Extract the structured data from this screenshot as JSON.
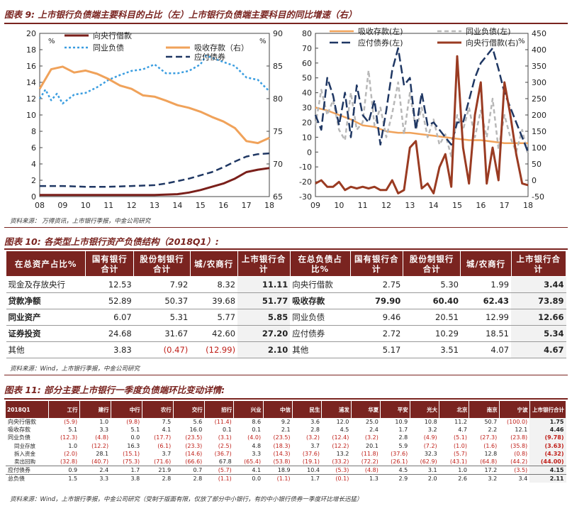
{
  "fig9_title": "图表 9: 上市银行负债端主要科目的占比（左）上市银行负债端主要科目的同比增速（右）",
  "fig9_source": "资料来源：  万得资讯，上市银行季报，中金公司研究",
  "fig10_title": "图表 10: 各类型上市银行资产负债结构（2018Q1）:",
  "fig10_source": "资料来源：Wind，上市银行季报，中金公司研究",
  "fig11_title": "图表 11: 部分主要上市银行一季度负债端环比变动详情:",
  "fig11_source": "资料来源：Wind，上市银行季报，中金公司研究（受制于版面有限，仅放了部分中小银行，有的中小银行债券一季度环比增长迅猛）",
  "colors": {
    "maroon": "#7a1f1a",
    "sky": "#3a9de0",
    "navy": "#1f3763",
    "orange": "#f0a25a",
    "gray": "#b8b8b8",
    "brown": "#9a3b22",
    "neg": "#c0201a"
  },
  "chart_data": [
    {
      "type": "line",
      "title": "上市银行负债端主要科目的占比",
      "ylabel_left": "%",
      "ylabel_right": "%",
      "ylim_left": [
        0,
        20
      ],
      "ylim_right": [
        65,
        90
      ],
      "x_ticks": [
        "08",
        "09",
        "10",
        "11",
        "12",
        "13",
        "14",
        "15",
        "16",
        "17",
        "18"
      ],
      "x_range": [
        2008,
        2018
      ],
      "yticks_left": [
        0,
        2,
        4,
        6,
        8,
        10,
        12,
        14,
        16,
        18,
        20
      ],
      "yticks_right": [
        65,
        70,
        75,
        80,
        85,
        90
      ],
      "legend": "top",
      "series": [
        {
          "name": "向央行借款",
          "axis": "left",
          "color": "#7a1f1a",
          "dash": "none",
          "width": 3,
          "x": [
            2008,
            2009,
            2010,
            2011,
            2012,
            2013,
            2014,
            2014.5,
            2015,
            2015.5,
            2016,
            2016.5,
            2017,
            2017.5,
            2018
          ],
          "y": [
            0.2,
            0.2,
            0.2,
            0.2,
            0.2,
            0.2,
            0.3,
            0.5,
            0.8,
            1.2,
            1.6,
            2.2,
            3.0,
            3.3,
            3.5
          ]
        },
        {
          "name": "应付债券",
          "axis": "left",
          "color": "#1f3763",
          "dash": "9,5",
          "width": 2.5,
          "x": [
            2008,
            2009,
            2010,
            2011,
            2012,
            2013,
            2013.5,
            2014,
            2014.5,
            2015,
            2015.5,
            2016,
            2016.5,
            2017,
            2017.5,
            2018
          ],
          "y": [
            1.3,
            1.3,
            1.2,
            1.2,
            1.3,
            1.4,
            1.6,
            1.9,
            2.2,
            2.6,
            3.0,
            3.6,
            4.3,
            4.9,
            5.2,
            5.3
          ]
        },
        {
          "name": "同业负债",
          "axis": "left",
          "color": "#3a9de0",
          "dash": "3,3",
          "width": 2.5,
          "x": [
            2008,
            2008.25,
            2008.5,
            2008.75,
            2009,
            2009.5,
            2010,
            2010.5,
            2011,
            2011.5,
            2012,
            2012.5,
            2013,
            2013.5,
            2014,
            2014.5,
            2015,
            2015.25,
            2015.5,
            2016,
            2016.5,
            2017,
            2017.5,
            2018
          ],
          "y": [
            12.0,
            13.1,
            11.8,
            12.6,
            11.4,
            12.5,
            12.7,
            13.4,
            14.3,
            14.9,
            15.4,
            15.6,
            16.2,
            15.1,
            15.1,
            15.4,
            16.2,
            17.3,
            17.0,
            16.5,
            16.0,
            14.6,
            14.3,
            12.9
          ]
        },
        {
          "name": "吸收存款（右）",
          "axis": "right",
          "color": "#f0a25a",
          "dash": "none",
          "width": 3,
          "x": [
            2008,
            2008.5,
            2009,
            2009.5,
            2010,
            2010.5,
            2011,
            2011.5,
            2012,
            2012.5,
            2013,
            2013.5,
            2014,
            2014.5,
            2015,
            2015.5,
            2016,
            2016.5,
            2017,
            2017.5,
            2018
          ],
          "y": [
            81.5,
            84.5,
            84.9,
            84.0,
            84.3,
            83.8,
            83.0,
            82.0,
            81.5,
            80.5,
            80.3,
            79.7,
            79.0,
            78.6,
            78.0,
            77.2,
            76.5,
            75.5,
            73.5,
            73.2,
            74.0
          ]
        }
      ]
    },
    {
      "type": "line",
      "title": "上市银行负债端主要科目的同比增速",
      "ylabel_right": "%",
      "ylim_left": [
        -30,
        80
      ],
      "ylim_right": [
        -50,
        450
      ],
      "x_ticks": [
        "09",
        "10",
        "11",
        "12",
        "13",
        "14",
        "15",
        "16",
        "17",
        "18"
      ],
      "x_range": [
        2009,
        2018
      ],
      "yticks_left": [
        -30,
        -20,
        -10,
        0,
        10,
        20,
        30,
        40,
        50,
        60,
        70,
        80
      ],
      "yticks_right": [
        -50,
        0,
        50,
        100,
        150,
        200,
        250,
        300,
        350,
        400,
        450
      ],
      "legend": "top",
      "series": [
        {
          "name": "吸收存款(左)",
          "axis": "left",
          "color": "#f0a25a",
          "dash": "none",
          "width": 2.5,
          "x": [
            2009,
            2009.5,
            2010,
            2010.5,
            2011,
            2011.5,
            2012,
            2012.5,
            2013,
            2013.5,
            2014,
            2014.5,
            2015,
            2015.5,
            2016,
            2016.5,
            2017,
            2017.5,
            2018
          ],
          "y": [
            30,
            28,
            25,
            22,
            18,
            17,
            14,
            13,
            13,
            12,
            11,
            10,
            9,
            8,
            8,
            7,
            6,
            6,
            6
          ]
        },
        {
          "name": "同业负债(左)",
          "axis": "left",
          "color": "#b8b8b8",
          "dash": "6,4",
          "width": 2.5,
          "x": [
            2009,
            2009.25,
            2009.5,
            2009.75,
            2010,
            2010.25,
            2010.5,
            2010.75,
            2011,
            2011.25,
            2011.5,
            2011.75,
            2012,
            2012.25,
            2012.5,
            2012.75,
            2013,
            2013.25,
            2013.5,
            2013.75,
            2014,
            2014.25,
            2014.5,
            2014.75,
            2015,
            2015.25,
            2015.5,
            2015.75,
            2016,
            2016.25,
            2016.5,
            2016.75,
            2017,
            2017.25,
            2017.5,
            2017.75,
            2018
          ],
          "y": [
            18,
            42,
            25,
            35,
            15,
            8,
            40,
            15,
            20,
            55,
            18,
            30,
            10,
            26,
            47,
            12,
            40,
            15,
            30,
            10,
            22,
            5,
            12,
            -3,
            25,
            15,
            30,
            10,
            28,
            10,
            36,
            2,
            25,
            10,
            0,
            15,
            -2
          ]
        },
        {
          "name": "应付债券(左)",
          "axis": "left",
          "color": "#1f3763",
          "dash": "12,5",
          "width": 2.5,
          "x": [
            2009,
            2009.25,
            2009.5,
            2009.75,
            2010,
            2010.25,
            2010.5,
            2010.75,
            2011,
            2011.25,
            2011.5,
            2011.75,
            2012,
            2012.25,
            2012.5,
            2012.75,
            2013,
            2013.25,
            2013.5,
            2013.75,
            2014,
            2014.25,
            2014.5,
            2014.75,
            2015,
            2015.25,
            2015.5,
            2015.75,
            2016,
            2016.25,
            2016.5,
            2016.75,
            2017,
            2017.25,
            2017.5,
            2017.75,
            2018
          ],
          "y": [
            25,
            15,
            50,
            38,
            18,
            40,
            10,
            45,
            25,
            20,
            35,
            5,
            28,
            55,
            70,
            45,
            50,
            15,
            40,
            18,
            20,
            15,
            10,
            5,
            20,
            20,
            35,
            50,
            60,
            65,
            70,
            56,
            40,
            30,
            20,
            10,
            0
          ]
        },
        {
          "name": "向央行借款(右)",
          "axis": "right",
          "color": "#9a3b22",
          "dash": "none",
          "width": 3,
          "x": [
            2009,
            2009.25,
            2009.5,
            2009.75,
            2010,
            2010.25,
            2010.5,
            2010.75,
            2011,
            2011.25,
            2011.5,
            2011.75,
            2012,
            2012.25,
            2012.5,
            2012.75,
            2013,
            2013.25,
            2013.5,
            2013.75,
            2014,
            2014.25,
            2014.5,
            2014.75,
            2015,
            2015.25,
            2015.5,
            2015.75,
            2016,
            2016.25,
            2016.5,
            2016.75,
            2017,
            2017.25,
            2017.5,
            2017.75,
            2018
          ],
          "y": [
            -10,
            0,
            -20,
            -20,
            -5,
            -30,
            -20,
            -25,
            -20,
            -25,
            -20,
            -30,
            -30,
            0,
            -40,
            -30,
            100,
            120,
            -25,
            -10,
            -40,
            40,
            80,
            -20,
            380,
            100,
            -10,
            200,
            300,
            -10,
            100,
            0,
            300,
            200,
            80,
            -10,
            -15
          ]
        }
      ]
    }
  ],
  "table10": {
    "headers": [
      "在总资产占比%",
      "国有银行合计",
      "股份制银行合计",
      "城/农商行",
      "上市银行合计",
      "在总负债占比%",
      "国有银行合计",
      "股份制银行合计",
      "城/农商行",
      "上市银行合计"
    ],
    "rows": [
      {
        "label": "现金及存放央行",
        "v": [
          "12.53",
          "7.92",
          "8.32",
          "11.11"
        ],
        "label2": "向央行借款",
        "w": [
          "2.75",
          "5.30",
          "1.99",
          "3.44"
        ],
        "bold": false,
        "bold2": false
      },
      {
        "label": "贷款净额",
        "v": [
          "52.89",
          "50.37",
          "39.68",
          "51.77"
        ],
        "label2": "吸收存款",
        "w": [
          "79.90",
          "60.40",
          "62.43",
          "73.89"
        ],
        "bold": true,
        "bold2": true
      },
      {
        "label": "同业资产",
        "v": [
          "6.07",
          "5.31",
          "5.77",
          "5.85"
        ],
        "label2": "同业负债",
        "w": [
          "9.46",
          "20.51",
          "12.99",
          "12.66"
        ],
        "bold": true,
        "bold2": false
      },
      {
        "label": "证券投资",
        "v": [
          "24.68",
          "31.67",
          "42.60",
          "27.20"
        ],
        "label2": "应付债券",
        "w": [
          "2.72",
          "10.29",
          "18.51",
          "5.34"
        ],
        "bold": true,
        "bold2": false
      },
      {
        "label": "其他",
        "v": [
          "3.83",
          "(0.47)",
          "(12.99)",
          "2.10"
        ],
        "label2": "其他",
        "w": [
          "5.17",
          "3.51",
          "4.07",
          "4.67"
        ],
        "bold": false,
        "bold2": false
      }
    ]
  },
  "table11": {
    "headers": [
      "2018Q1",
      "工行",
      "建行",
      "中行",
      "农行",
      "交行",
      "招行",
      "兴业",
      "中信",
      "民生",
      "浦发",
      "华夏",
      "平安",
      "光大",
      "北京",
      "南京",
      "宁波",
      "上市银行合计"
    ],
    "rows": [
      {
        "label": "向央行借款",
        "v": [
          "(5.9)",
          "1.0",
          "(9.8)",
          "7.5",
          "5.6",
          "(11.4)",
          "8.6",
          "9.2",
          "3.6",
          "12.0",
          "25.0",
          "10.9",
          "10.8",
          "11.2",
          "50.7",
          "(100.0)",
          "1.75"
        ],
        "sub": false,
        "bb": false
      },
      {
        "label": "吸收存款",
        "v": [
          "5.1",
          "3.3",
          "5.1",
          "4.1",
          "16.0",
          "0.1",
          "0.1",
          "2.1",
          "2.8",
          "4.5",
          "2.4",
          "1.7",
          "3.2",
          "4.7",
          "2.2",
          "12.1",
          "4.46"
        ],
        "sub": false,
        "bb": false
      },
      {
        "label": "同业负债",
        "v": [
          "(12.3)",
          "(4.8)",
          "0.0",
          "(17.7)",
          "(23.5)",
          "(3.1)",
          "(4.0)",
          "(23.5)",
          "(3.2)",
          "(12.4)",
          "(3.2)",
          "2.8",
          "(4.9)",
          "(5.1)",
          "(27.3)",
          "(23.8)",
          "(9.78)"
        ],
        "sub": false,
        "bb": false
      },
      {
        "label": "同业存放",
        "v": [
          "1.0",
          "(12.2)",
          "16.3",
          "(6.1)",
          "(23.3)",
          "(2.5)",
          "4.8",
          "(18.3)",
          "3.7",
          "(12.2)",
          "20.1",
          "5.9",
          "(7.2)",
          "(1.0)",
          "(1.6)",
          "(35.8)",
          "(3.63)"
        ],
        "sub": true,
        "bb": false
      },
      {
        "label": "拆入资金",
        "v": [
          "(2.0)",
          "28.1",
          "(15.1)",
          "3.7",
          "(14.6)",
          "(36.7)",
          "3.3",
          "(14.3)",
          "(37.6)",
          "13.2",
          "(11.8)",
          "(37.6)",
          "32.3",
          "(5.7)",
          "12.8",
          "(0.8)",
          "(4.32)"
        ],
        "sub": true,
        "bb": false
      },
      {
        "label": "卖出回购",
        "v": [
          "(32.8)",
          "(40.7)",
          "(75.3)",
          "(71.6)",
          "(66.6)",
          "67.8",
          "(65.4)",
          "(53.8)",
          "(19.1)",
          "(33.2)",
          "(72.2)",
          "(26.1)",
          "(62.9)",
          "(43.1)",
          "(64.8)",
          "(44.2)",
          "(44.00)"
        ],
        "sub": true,
        "bb": true
      },
      {
        "label": "应付债券",
        "v": [
          "0.9",
          "2.4",
          "1.7",
          "21.9",
          "0.7",
          "(5.7)",
          "4.1",
          "18.9",
          "10.4",
          "(5.3)",
          "(4.8)",
          "4.5",
          "3.1",
          "1.0",
          "17.2",
          "(3.5)",
          "4.15"
        ],
        "sub": false,
        "bb": true
      },
      {
        "label": "总负债",
        "v": [
          "1.5",
          "3.3",
          "3.8",
          "2.8",
          "2.8",
          "(1.1)",
          "0.0",
          "(1.1)",
          "1.7",
          "(0.1)",
          "1.3",
          "2.9",
          "2.0",
          "2.6",
          "3.2",
          "3.4",
          "2.11"
        ],
        "sub": false,
        "bb": false
      }
    ]
  }
}
